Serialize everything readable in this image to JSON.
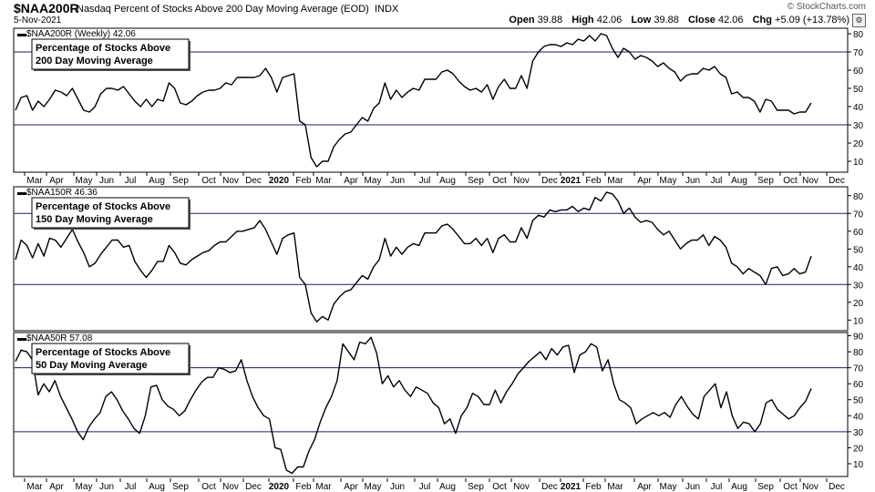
{
  "header": {
    "symbol": "$NAA200R",
    "description": "Nasdaq Percent of Stocks Above 200 Day Moving Average (EOD)",
    "exchange": "INDX",
    "date": "5-Nov-2021",
    "copyright": "© StockCharts.com",
    "open_label": "Open",
    "open_value": "39.88",
    "high_label": "High",
    "high_value": "42.06",
    "low_label": "Low",
    "low_value": "39.88",
    "close_label": "Close",
    "close_value": "42.06",
    "chg_label": "Chg",
    "chg_value": "+5.09 (+13.78%)",
    "settings_icon": "gear-icon"
  },
  "x_axis_labels": [
    "Mar",
    "Apr",
    "May",
    "Jun",
    "Jul",
    "Aug",
    "Sep",
    "Oct",
    "Nov",
    "Dec",
    "2020",
    "Feb",
    "Mar",
    "Apr",
    "May",
    "Jun",
    "Jul",
    "Aug",
    "Sep",
    "Oct",
    "Nov",
    "Dec",
    "2021",
    "Feb",
    "Mar",
    "Apr",
    "May",
    "Jun",
    "Jul",
    "Aug",
    "Sep",
    "Oct",
    "Nov",
    "Dec"
  ],
  "chart_data": [
    {
      "type": "line",
      "legend": "$NAA200R (Weekly) 42.06",
      "annotation": [
        "Percentage of Stocks Above",
        "200 Day Moving Average"
      ],
      "ylim": [
        4,
        83
      ],
      "yticks": [
        10,
        20,
        30,
        40,
        50,
        60,
        70,
        80
      ],
      "reference_lines": [
        70,
        30
      ],
      "values": [
        38,
        45,
        46,
        38,
        43,
        40,
        44,
        49,
        48,
        46,
        50,
        44,
        38,
        37,
        40,
        47,
        50,
        50,
        49,
        51,
        47,
        43,
        40,
        44,
        40,
        44,
        43,
        53,
        50,
        42,
        41,
        43,
        46,
        48,
        49,
        49,
        50,
        53,
        52,
        56,
        56,
        56,
        56,
        57,
        61,
        56,
        48,
        56,
        57,
        58,
        32,
        30,
        12,
        7,
        10,
        10,
        18,
        22,
        25,
        26,
        30,
        34,
        32,
        39,
        42,
        53,
        44,
        49,
        45,
        48,
        50,
        49,
        55,
        55,
        55,
        59,
        60,
        58,
        54,
        51,
        49,
        50,
        48,
        52,
        44,
        51,
        55,
        50,
        50,
        57,
        50,
        65,
        70,
        73,
        74,
        74,
        73,
        75,
        74,
        77,
        76,
        79,
        76,
        80,
        79,
        72,
        67,
        72,
        70,
        66,
        68,
        67,
        65,
        62,
        64,
        61,
        59,
        54,
        57,
        58,
        58,
        61,
        60,
        62,
        58,
        56,
        47,
        48,
        45,
        45,
        43,
        37,
        44,
        43,
        38,
        38,
        38,
        36,
        37,
        37,
        42
      ]
    },
    {
      "type": "line",
      "legend": "$NAA150R 46.36",
      "annotation": [
        "Percentage of Stocks Above",
        "150 Day Moving Average"
      ],
      "ylim": [
        4,
        85
      ],
      "yticks": [
        10,
        20,
        30,
        40,
        50,
        60,
        70,
        80
      ],
      "reference_lines": [
        70,
        30
      ],
      "values": [
        44,
        55,
        52,
        45,
        53,
        46,
        56,
        55,
        51,
        56,
        61,
        54,
        48,
        40,
        42,
        47,
        51,
        55,
        55,
        51,
        52,
        43,
        38,
        34,
        38,
        43,
        43,
        52,
        48,
        42,
        41,
        44,
        46,
        48,
        49,
        52,
        54,
        54,
        57,
        60,
        60,
        61,
        62,
        66,
        61,
        54,
        47,
        56,
        58,
        59,
        34,
        30,
        14,
        9,
        12,
        10,
        19,
        23,
        26,
        27,
        31,
        35,
        33,
        40,
        44,
        56,
        46,
        51,
        47,
        51,
        53,
        52,
        59,
        59,
        59,
        63,
        64,
        61,
        57,
        53,
        53,
        56,
        52,
        56,
        48,
        56,
        58,
        54,
        54,
        62,
        56,
        66,
        69,
        68,
        72,
        71,
        72,
        72,
        74,
        71,
        73,
        72,
        79,
        77,
        82,
        81,
        77,
        70,
        73,
        68,
        65,
        66,
        65,
        61,
        58,
        60,
        55,
        50,
        53,
        55,
        55,
        58,
        52,
        57,
        55,
        51,
        42,
        40,
        36,
        39,
        37,
        35,
        30,
        39,
        40,
        35,
        36,
        39,
        36,
        37,
        46
      ]
    },
    {
      "type": "line",
      "legend": "$NAA50R 57.08",
      "annotation": [
        "Percentage of Stocks Above",
        "50 Day Moving Average"
      ],
      "ylim": [
        2,
        92
      ],
      "yticks": [
        10,
        20,
        30,
        40,
        50,
        60,
        70,
        80,
        90
      ],
      "reference_lines": [
        70,
        30
      ],
      "values": [
        74,
        81,
        80,
        75,
        53,
        60,
        55,
        62,
        52,
        45,
        38,
        30,
        25,
        33,
        38,
        42,
        52,
        55,
        50,
        43,
        38,
        32,
        29,
        40,
        58,
        59,
        50,
        46,
        44,
        40,
        43,
        50,
        56,
        61,
        64,
        64,
        70,
        69,
        67,
        68,
        75,
        62,
        52,
        45,
        40,
        38,
        20,
        19,
        6,
        4,
        8,
        8,
        18,
        25,
        36,
        45,
        52,
        62,
        85,
        80,
        75,
        86,
        85,
        89,
        79,
        60,
        65,
        58,
        62,
        56,
        52,
        58,
        56,
        54,
        48,
        45,
        35,
        38,
        29,
        40,
        45,
        54,
        52,
        47,
        47,
        56,
        48,
        55,
        60,
        66,
        70,
        74,
        77,
        80,
        75,
        82,
        78,
        83,
        84,
        67,
        78,
        80,
        85,
        83,
        68,
        75,
        60,
        50,
        48,
        45,
        35,
        38,
        40,
        42,
        40,
        42,
        39,
        47,
        52,
        46,
        41,
        38,
        52,
        56,
        60,
        45,
        55,
        40,
        32,
        36,
        35,
        30,
        35,
        48,
        50,
        44,
        41,
        38,
        40,
        45,
        49,
        57
      ]
    }
  ]
}
